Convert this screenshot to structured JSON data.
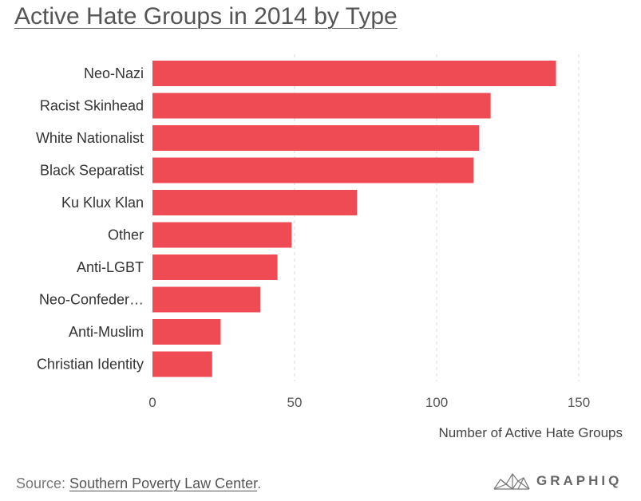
{
  "header": {
    "title": "Active Hate Groups in 2014 by Type"
  },
  "chart_data": {
    "type": "bar",
    "orientation": "horizontal",
    "title": "Active Hate Groups in 2014 by Type",
    "xlabel": "Number of Active Hate Groups",
    "ylabel": "",
    "xlim": [
      0,
      160
    ],
    "xticks": [
      0,
      50,
      100,
      150
    ],
    "grid": "vertical dashed",
    "categories": [
      "Neo-Nazi",
      "Racist Skinhead",
      "White Nationalist",
      "Black Separatist",
      "Ku Klux Klan",
      "Other",
      "Anti-LGBT",
      "Neo-Confeder…",
      "Anti-Muslim",
      "Christian Identity"
    ],
    "values": [
      142,
      119,
      115,
      113,
      72,
      49,
      44,
      38,
      24,
      21
    ],
    "bar_color": "#ee4b55"
  },
  "footer": {
    "source_prefix": "Source: ",
    "source_link": "Southern Poverty Law Center",
    "source_suffix": ".",
    "brand": "GRAPHIQ",
    "brand_icon": "graphiq-mesh-icon"
  }
}
